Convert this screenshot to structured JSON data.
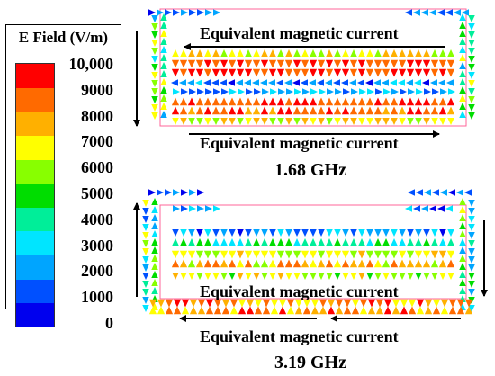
{
  "legend": {
    "title": "E Field (V/m)",
    "ticks": [
      "10,000",
      "9000",
      "8000",
      "7000",
      "6000",
      "5000",
      "4000",
      "3000",
      "2000",
      "1000",
      "0"
    ],
    "colors": [
      "#ff0000",
      "#ff6a00",
      "#ffb000",
      "#ffff00",
      "#88ff00",
      "#00dd00",
      "#00ee99",
      "#00e5ff",
      "#00a5ff",
      "#0050ff",
      "#0000ee"
    ]
  },
  "top_panel": {
    "frequency": "1.68 GHz",
    "upper_current_label": "Equivalent magnetic current",
    "lower_current_label": "Equivalent magnetic current"
  },
  "bottom_panel": {
    "frequency": "3.19 GHz",
    "upper_current_label": "Equivalent magnetic current",
    "lower_current_label": "Equivalent magnetic current"
  }
}
